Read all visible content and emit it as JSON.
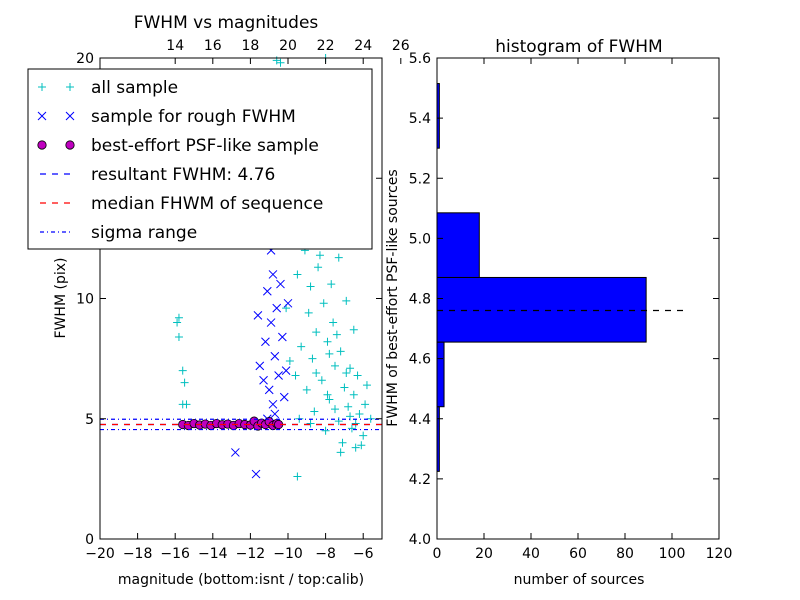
{
  "chart_data": [
    {
      "type": "scatter",
      "title": "FWHM vs magnitudes",
      "xlabel": "magnitude (bottom:isnt / top:calib)",
      "ylabel": "FWHM (pix)",
      "xlim": [
        -20,
        -5
      ],
      "ylim": [
        0,
        20
      ],
      "x_ticks": [
        "−20",
        "−18",
        "−16",
        "−14",
        "−12",
        "−10",
        "−8",
        "−6"
      ],
      "x_tick_values": [
        -20,
        -18,
        -16,
        -14,
        -12,
        -10,
        -8,
        -6
      ],
      "top_ticks": [
        "14",
        "16",
        "18",
        "20",
        "22",
        "24",
        "26"
      ],
      "top_tick_values": [
        14,
        16,
        18,
        20,
        22,
        24,
        26
      ],
      "top_offset": 30,
      "y_ticks": [
        "0",
        "5",
        "10",
        "15",
        "20"
      ],
      "y_tick_values": [
        0,
        5,
        10,
        15,
        20
      ],
      "legend_position": "upper-left",
      "legend": [
        {
          "label": "all sample",
          "marker": "plus",
          "color": "#00bfbf"
        },
        {
          "label": "sample for rough FWHM",
          "marker": "x",
          "color": "#0000ff"
        },
        {
          "label": "best-effort PSF-like sample",
          "marker": "circle",
          "color": "#bf00bf"
        },
        {
          "label": "resultant FWHM: 4.76",
          "marker": "dash",
          "color": "#0000ff"
        },
        {
          "label": "median FHWM of sequence",
          "marker": "dash",
          "color": "#ff0000"
        },
        {
          "label": "sigma range",
          "marker": "dashdot",
          "color": "#0000ff"
        }
      ],
      "series": [
        {
          "name": "all sample",
          "color": "#00bfbf",
          "marker": "plus",
          "points": [
            [
              -15.9,
              9.0
            ],
            [
              -15.8,
              9.2
            ],
            [
              -15.8,
              8.4
            ],
            [
              -15.6,
              7.0
            ],
            [
              -15.5,
              6.5
            ],
            [
              -15.6,
              5.6
            ],
            [
              -15.4,
              5.6
            ],
            [
              -9.5,
              2.6
            ],
            [
              -10.6,
              19.9
            ],
            [
              -10.4,
              19.8
            ],
            [
              -8.0,
              20.0
            ],
            [
              -9.8,
              17.5
            ],
            [
              -9.2,
              15.8
            ],
            [
              -9.0,
              13.2
            ],
            [
              -8.6,
              12.6
            ],
            [
              -8.3,
              11.8
            ],
            [
              -9.5,
              11.0
            ],
            [
              -8.8,
              10.5
            ],
            [
              -8.1,
              9.8
            ],
            [
              -7.6,
              9.0
            ],
            [
              -8.5,
              8.6
            ],
            [
              -7.9,
              8.2
            ],
            [
              -7.2,
              7.8
            ],
            [
              -8.7,
              7.5
            ],
            [
              -7.5,
              7.2
            ],
            [
              -6.9,
              6.9
            ],
            [
              -8.2,
              6.6
            ],
            [
              -7.0,
              6.3
            ],
            [
              -6.5,
              6.0
            ],
            [
              -7.8,
              5.8
            ],
            [
              -6.8,
              5.5
            ],
            [
              -6.2,
              5.2
            ],
            [
              -7.3,
              4.9
            ],
            [
              -6.6,
              4.6
            ],
            [
              -6.0,
              4.3
            ],
            [
              -5.8,
              6.4
            ],
            [
              -7.1,
              4.0
            ],
            [
              -6.4,
              3.8
            ],
            [
              -5.6,
              5.0
            ],
            [
              -8.9,
              9.4
            ],
            [
              -9.3,
              8.0
            ],
            [
              -7.7,
              10.6
            ],
            [
              -8.4,
              11.3
            ],
            [
              -9.1,
              12.0
            ],
            [
              -7.4,
              8.5
            ],
            [
              -6.7,
              7.1
            ],
            [
              -7.9,
              6.0
            ],
            [
              -8.6,
              5.3
            ],
            [
              -9.6,
              6.8
            ],
            [
              -10.1,
              9.6
            ],
            [
              -9.9,
              7.4
            ],
            [
              -6.3,
              6.8
            ],
            [
              -5.9,
              5.6
            ],
            [
              -7.2,
              3.6
            ],
            [
              -6.1,
              3.9
            ],
            [
              -8.0,
              4.5
            ],
            [
              -8.8,
              4.8
            ],
            [
              -9.4,
              5.0
            ],
            [
              -7.6,
              12.9
            ],
            [
              -8.2,
              14.0
            ],
            [
              -9.7,
              13.6
            ],
            [
              -8.9,
              15.0
            ],
            [
              -7.3,
              11.7
            ],
            [
              -6.9,
              9.9
            ],
            [
              -6.5,
              8.7
            ],
            [
              -7.8,
              7.7
            ],
            [
              -8.5,
              6.9
            ],
            [
              -9.0,
              6.2
            ],
            [
              -7.5,
              5.4
            ],
            [
              -6.7,
              5.1
            ],
            [
              -6.4,
              4.8
            ]
          ]
        },
        {
          "name": "sample for rough FWHM",
          "color": "#0000ff",
          "marker": "x",
          "points": [
            [
              -12.8,
              3.6
            ],
            [
              -11.7,
              2.7
            ],
            [
              -11.4,
              15.9
            ],
            [
              -11.2,
              14.6
            ],
            [
              -11.0,
              13.0
            ],
            [
              -11.3,
              12.4
            ],
            [
              -10.8,
              11.0
            ],
            [
              -11.1,
              10.3
            ],
            [
              -10.6,
              9.6
            ],
            [
              -10.9,
              9.0
            ],
            [
              -11.2,
              8.2
            ],
            [
              -10.7,
              7.6
            ],
            [
              -10.5,
              6.8
            ],
            [
              -11.0,
              6.2
            ],
            [
              -10.8,
              5.6
            ],
            [
              -10.4,
              10.6
            ],
            [
              -10.3,
              8.4
            ],
            [
              -11.5,
              7.2
            ],
            [
              -10.2,
              5.9
            ],
            [
              -11.3,
              6.6
            ],
            [
              -10.6,
              13.8
            ],
            [
              -10.9,
              12.0
            ],
            [
              -11.6,
              9.3
            ],
            [
              -10.1,
              7.0
            ],
            [
              -10.7,
              5.2
            ],
            [
              -10.0,
              9.8
            ],
            [
              -10.4,
              12.6
            ],
            [
              -11.1,
              5.0
            ]
          ]
        },
        {
          "name": "best-effort PSF-like sample",
          "color": "#bf00bf",
          "marker": "circle",
          "points": [
            [
              -15.6,
              4.76
            ],
            [
              -15.3,
              4.72
            ],
            [
              -15.0,
              4.8
            ],
            [
              -14.7,
              4.74
            ],
            [
              -14.4,
              4.78
            ],
            [
              -14.1,
              4.72
            ],
            [
              -13.8,
              4.8
            ],
            [
              -13.5,
              4.75
            ],
            [
              -13.2,
              4.78
            ],
            [
              -12.9,
              4.72
            ],
            [
              -12.6,
              4.8
            ],
            [
              -12.3,
              4.76
            ],
            [
              -12.0,
              4.74
            ],
            [
              -11.8,
              4.9
            ],
            [
              -11.6,
              4.7
            ],
            [
              -11.4,
              4.82
            ],
            [
              -11.2,
              4.76
            ],
            [
              -11.0,
              4.88
            ],
            [
              -10.8,
              4.72
            ],
            [
              -10.6,
              4.8
            ],
            [
              -10.5,
              4.76
            ]
          ]
        }
      ],
      "lines": [
        {
          "name": "resultant FWHM: 4.76",
          "y": 4.76,
          "color": "#0000ff",
          "style": "dashed"
        },
        {
          "name": "median FHWM of sequence",
          "y": 4.76,
          "color": "#ff0000",
          "style": "dashed"
        },
        {
          "name": "sigma range",
          "y": 4.98,
          "color": "#0000ff",
          "style": "dashdot"
        },
        {
          "name": "sigma range",
          "y": 4.55,
          "color": "#0000ff",
          "style": "dashdot"
        }
      ]
    },
    {
      "type": "bar",
      "orientation": "horizontal",
      "title": "histogram of FWHM",
      "xlabel": "number of sources",
      "ylabel": "FWHM of best-effort PSF-like sources",
      "xlim": [
        0,
        120
      ],
      "ylim": [
        4.0,
        5.6
      ],
      "x_ticks": [
        "0",
        "20",
        "40",
        "60",
        "80",
        "100",
        "120"
      ],
      "x_tick_values": [
        0,
        20,
        40,
        60,
        80,
        100,
        120
      ],
      "y_ticks": [
        "4.0",
        "4.2",
        "4.4",
        "4.6",
        "4.8",
        "5.0",
        "5.2",
        "5.4",
        "5.6"
      ],
      "y_tick_values": [
        4.0,
        4.2,
        4.4,
        4.6,
        4.8,
        5.0,
        5.2,
        5.4,
        5.6
      ],
      "bar_color": "#0000ff",
      "bins": [
        {
          "from": 4.225,
          "to": 4.44,
          "count": 1
        },
        {
          "from": 4.44,
          "to": 4.655,
          "count": 3
        },
        {
          "from": 4.655,
          "to": 4.87,
          "count": 89
        },
        {
          "from": 4.87,
          "to": 5.085,
          "count": 18
        },
        {
          "from": 5.085,
          "to": 5.3,
          "count": 0
        },
        {
          "from": 5.3,
          "to": 5.515,
          "count": 1
        }
      ],
      "reference_line": {
        "y": 4.76,
        "color": "#000000",
        "style": "dashed",
        "x_end": 107
      }
    }
  ]
}
